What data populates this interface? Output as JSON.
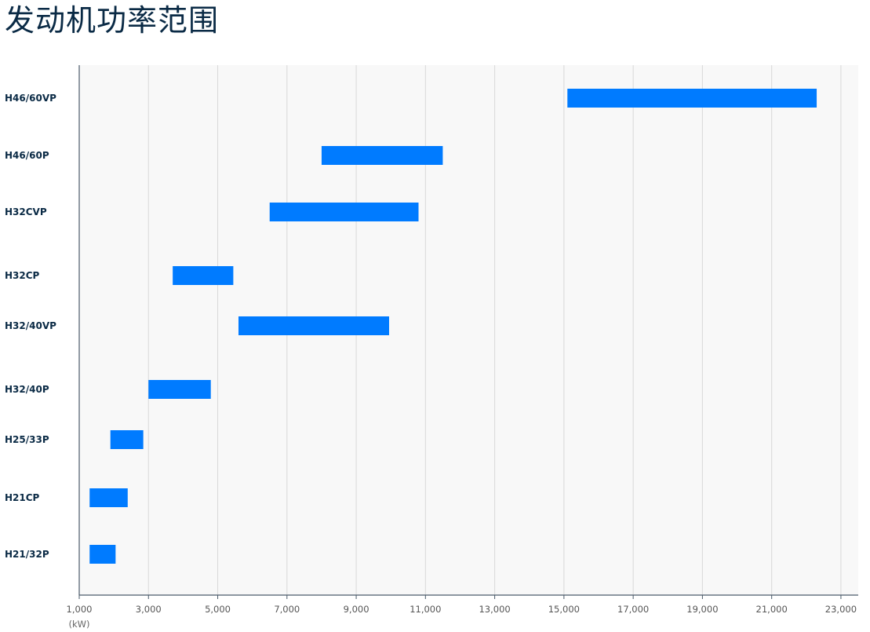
{
  "page": {
    "title": "发动机功率范围"
  },
  "chart_data": {
    "type": "bar",
    "orientation": "horizontal-range",
    "categories": [
      "H46/60VP",
      "H46/60P",
      "H32CVP",
      "H32CP",
      "H32/40VP",
      "H32/40P",
      "H25/33P",
      "H21CP",
      "H21/32P"
    ],
    "ranges": [
      [
        15100,
        22300
      ],
      [
        8000,
        11500
      ],
      [
        6500,
        10800
      ],
      [
        3700,
        5450
      ],
      [
        5600,
        9950
      ],
      [
        3000,
        4800
      ],
      [
        1900,
        2850
      ],
      [
        1300,
        2400
      ],
      [
        1300,
        2050
      ]
    ],
    "xlim": [
      1000,
      23500
    ],
    "xticks": [
      1000,
      3000,
      5000,
      7000,
      9000,
      11000,
      13000,
      15000,
      17000,
      19000,
      21000,
      23000
    ],
    "xtick_labels": [
      "1,000",
      "3,000",
      "5,000",
      "7,000",
      "9,000",
      "11,000",
      "13,000",
      "15,000",
      "17,000",
      "19,000",
      "21,000",
      "23,000"
    ],
    "xunit": "(kW)",
    "grid": "vertical",
    "bar_color": "#007bff",
    "plot_background": "#f8f8f8"
  }
}
